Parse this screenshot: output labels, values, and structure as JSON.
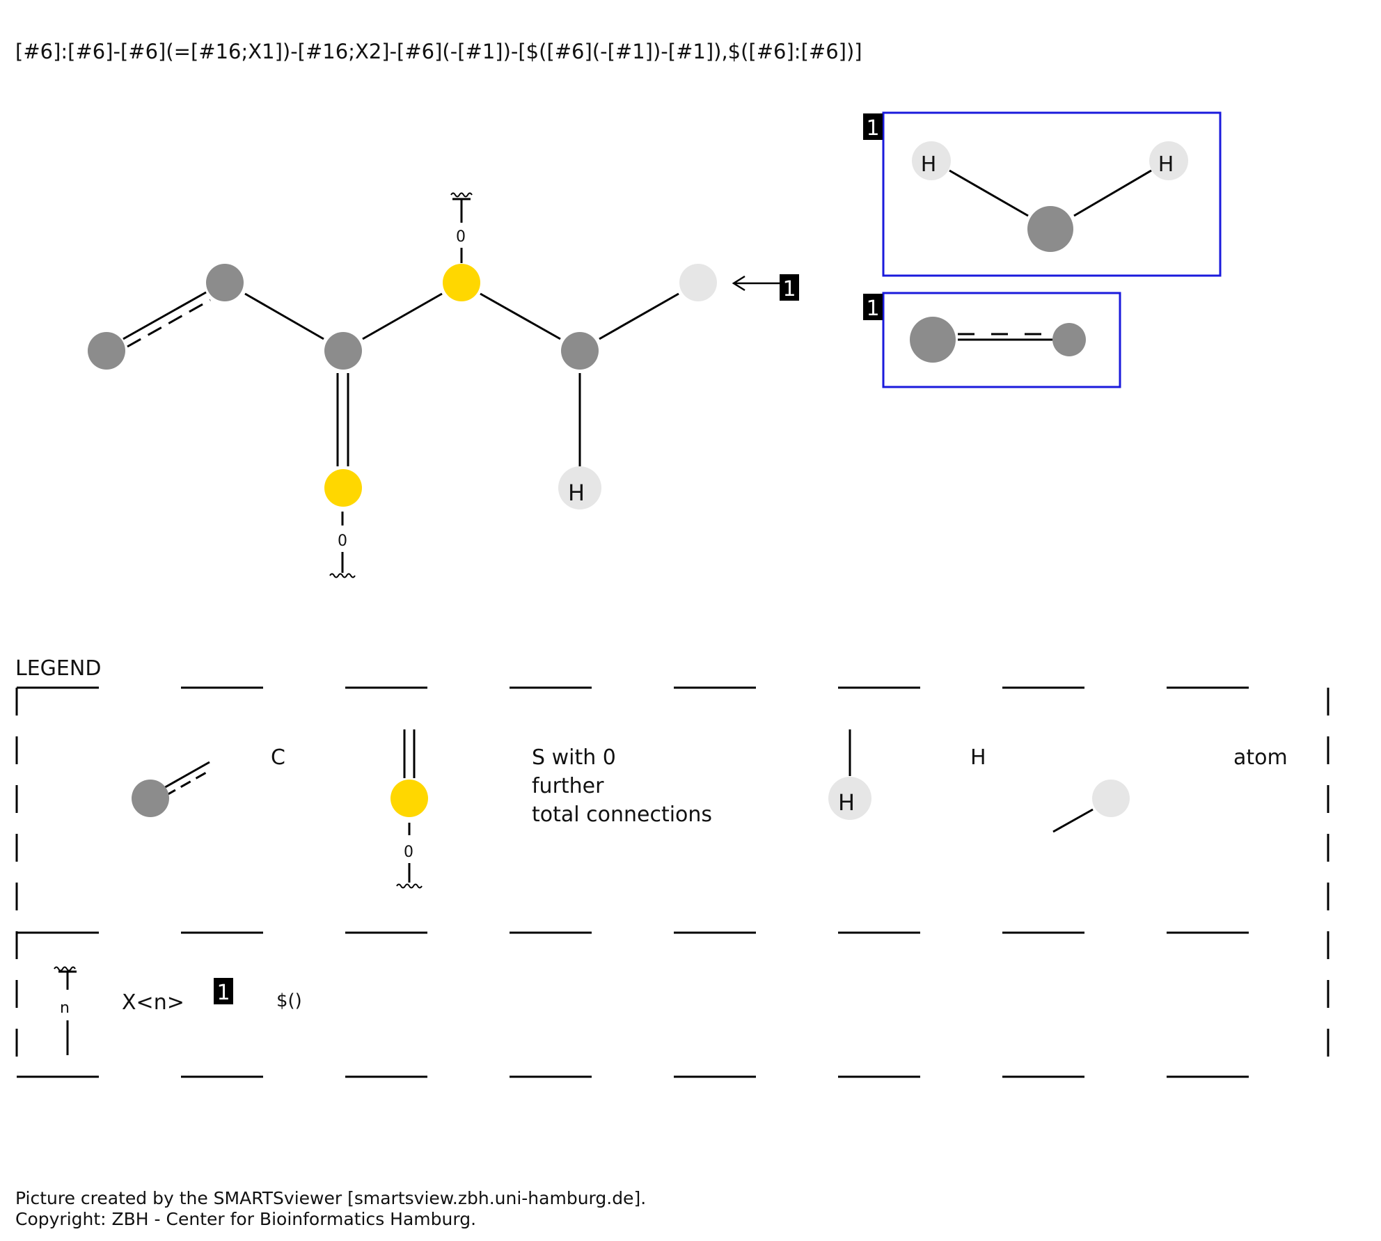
{
  "smarts": "[#6]:[#6]-[#6](=[#16;X1])-[#16;X2]-[#6](-[#1])-[$([#6](-[#1])-[#1]),$([#6]:[#6])]",
  "colors": {
    "carbon": "#8c8c8c",
    "sulfur": "#ffd700",
    "hydrogen": "#e6e6e6",
    "recursive_box": "#1a1adc",
    "bond": "#000000"
  },
  "molecule": {
    "connection_count_top": "0",
    "connection_count_bottom": "0",
    "hydrogen_label": "H",
    "recursive_marker": "1"
  },
  "recursive_boxes": [
    {
      "marker": "1",
      "h_left": "H",
      "h_right": "H"
    },
    {
      "marker": "1"
    }
  ],
  "legend": {
    "title": "LEGEND",
    "row1": {
      "aromatic_carbon_label": "C",
      "sulfur_count": "0",
      "sulfur_label_lines": [
        "S with 0",
        "further",
        "total connections"
      ],
      "hydrogen_symbol": "H",
      "hydrogen_label": "H",
      "generic_atom_label": "atom"
    },
    "row2": {
      "connections_symbol": "n",
      "connections_label": "X<n>",
      "recursive_marker": "1",
      "recursive_label": "$()"
    }
  },
  "footer": {
    "line1": "Picture created by the SMARTSviewer [smartsview.zbh.uni-hamburg.de].",
    "line2": "Copyright: ZBH - Center for Bioinformatics Hamburg."
  }
}
